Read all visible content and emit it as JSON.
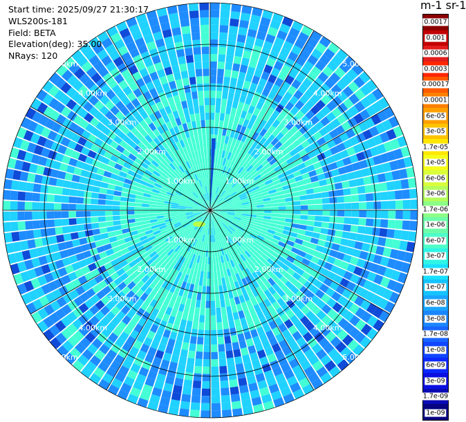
{
  "header": {
    "start_time": "Start time: 2025/09/27 21:30:17",
    "instrument": "WLS200s-181",
    "field": "Field: BETA",
    "elevation": "Elevation(deg): 35.00",
    "nrays": "NRays: 120"
  },
  "colorbar": {
    "title": "m-1 sr-1",
    "labels": [
      "0.0017",
      "0.001",
      "0.0006",
      "0.0003",
      "0.00017",
      "0.0001",
      "6e-05",
      "3e-05",
      "1.7e-05",
      "1e-05",
      "6e-06",
      "3e-06",
      "1.7e-06",
      "1e-06",
      "6e-07",
      "3e-07",
      "1.7e-07",
      "1e-07",
      "6e-08",
      "3e-08",
      "1.7e-08",
      "1e-08",
      "6e-09",
      "3e-09",
      "1.7e-09",
      "1e-09"
    ],
    "colors": [
      "#8b0000",
      "#c40000",
      "#e11d1d",
      "#ff2600",
      "#ff5a00",
      "#ff8000",
      "#ffa000",
      "#ffc400",
      "#ffe800",
      "#f5ff1a",
      "#d9ff3b",
      "#b5ff5d",
      "#8cff86",
      "#6cffaa",
      "#4dffc9",
      "#2ff5e6",
      "#1ae0ff",
      "#14c3ff",
      "#1aa4ff",
      "#1a86ff",
      "#1866ff",
      "#1146ff",
      "#0a28ff",
      "#0a10e0",
      "#0a0ab4",
      "#050580"
    ]
  },
  "range_rings": {
    "labels": [
      "1.00km",
      "2.00km",
      "3.00km",
      "4.00km",
      "5.00km"
    ]
  },
  "plot": {
    "rays": 120,
    "near_color": "#44ffd5",
    "mid_color": "#20d2ff",
    "far_color": "#1e8cff",
    "dark_color": "#0f4bd8"
  }
}
